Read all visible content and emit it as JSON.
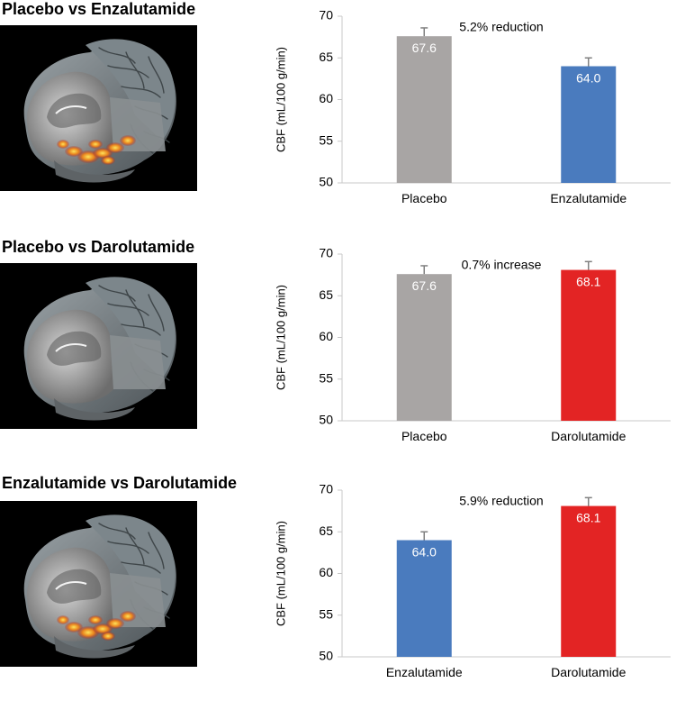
{
  "colors": {
    "placebo": "#a8a5a4",
    "enzalutamide": "#4a7bbe",
    "darolutamide": "#e32424",
    "error_bar": "#808080",
    "axis": "#c8c8c8",
    "brain_bg": "#000000"
  },
  "chart_data": [
    {
      "type": "bar",
      "title": "Placebo vs Enzalutamide",
      "ylabel": "CBF (mL/100 g/min)",
      "xlabel": "",
      "ylim": [
        50,
        70
      ],
      "yticks": [
        50,
        55,
        60,
        65,
        70
      ],
      "categories": [
        "Placebo",
        "Enzalutamide"
      ],
      "values": [
        67.6,
        64.0
      ],
      "value_labels": [
        "67.6",
        "64.0"
      ],
      "error": [
        1.0,
        1.0
      ],
      "color_keys": [
        "placebo",
        "enzalutamide"
      ],
      "annotation": "5.2% reduction",
      "brain_activation": "occipital"
    },
    {
      "type": "bar",
      "title": "Placebo vs Darolutamide",
      "ylabel": "CBF (mL/100 g/min)",
      "xlabel": "",
      "ylim": [
        50,
        70
      ],
      "yticks": [
        50,
        55,
        60,
        65,
        70
      ],
      "categories": [
        "Placebo",
        "Darolutamide"
      ],
      "values": [
        67.6,
        68.1
      ],
      "value_labels": [
        "67.6",
        "68.1"
      ],
      "error": [
        1.0,
        1.0
      ],
      "color_keys": [
        "placebo",
        "darolutamide"
      ],
      "annotation": "0.7% increase",
      "brain_activation": "none"
    },
    {
      "type": "bar",
      "title": "Enzalutamide vs Darolutamide",
      "ylabel": "CBF (mL/100 g/min)",
      "xlabel": "",
      "ylim": [
        50,
        70
      ],
      "yticks": [
        50,
        55,
        60,
        65,
        70
      ],
      "categories": [
        "Enzalutamide",
        "Darolutamide"
      ],
      "values": [
        64.0,
        68.1
      ],
      "value_labels": [
        "64.0",
        "68.1"
      ],
      "error": [
        1.0,
        1.0
      ],
      "color_keys": [
        "enzalutamide",
        "darolutamide"
      ],
      "annotation": "5.9% reduction",
      "brain_activation": "occipital"
    }
  ]
}
